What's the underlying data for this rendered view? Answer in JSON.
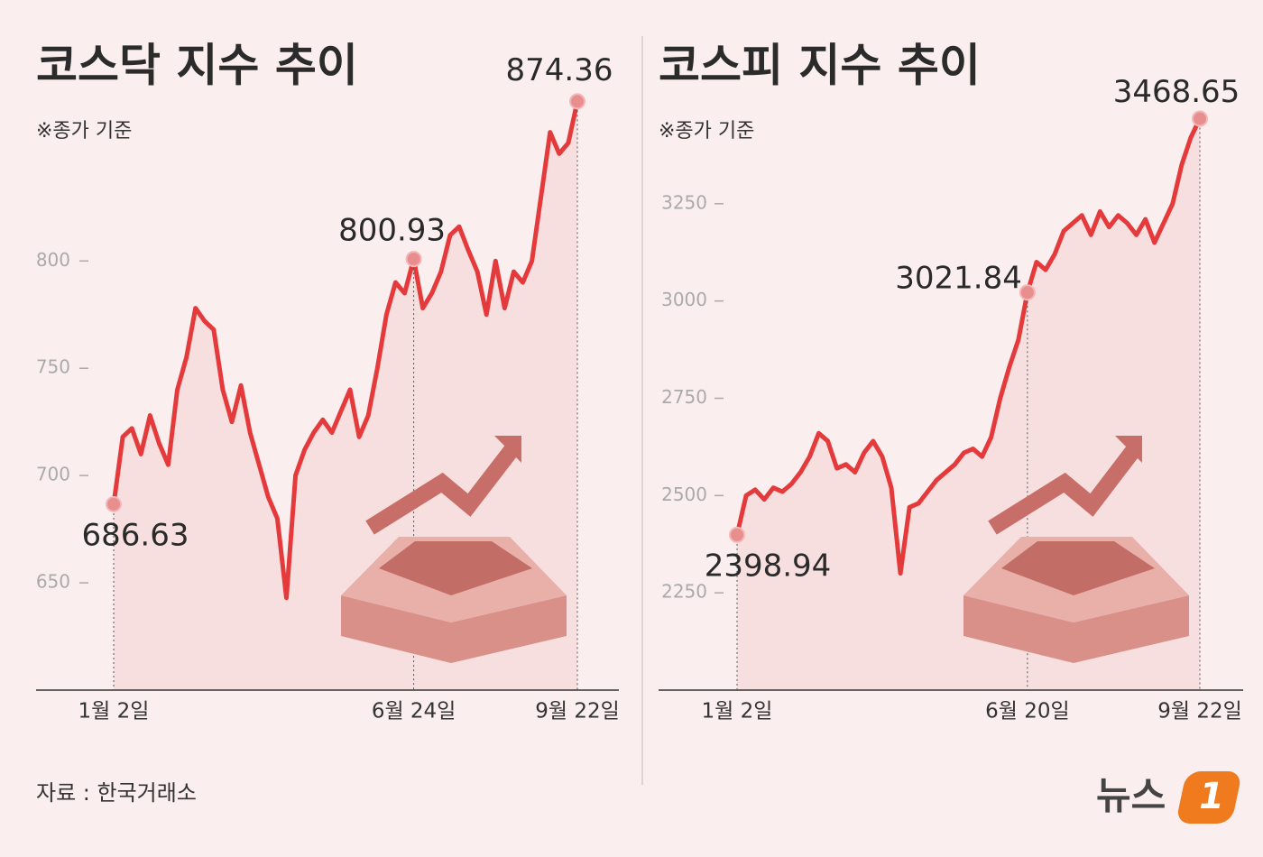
{
  "chart_data": [
    {
      "type": "line",
      "title": "코스닥 지수 추이",
      "subtitle": "※종가 기준",
      "color": "#e53a3c",
      "categories": [
        "1월 2일",
        null,
        null,
        null,
        null,
        null,
        null,
        null,
        null,
        null,
        null,
        null,
        null,
        null,
        null,
        null,
        null,
        null,
        null,
        null,
        null,
        null,
        null,
        null,
        null,
        null,
        null,
        null,
        null,
        null,
        null,
        null,
        null,
        "6월 24일",
        null,
        null,
        null,
        null,
        null,
        null,
        null,
        null,
        null,
        null,
        null,
        null,
        null,
        null,
        null,
        null,
        null,
        "9월 22일"
      ],
      "values": [
        686.63,
        718,
        722,
        710,
        728,
        715,
        705,
        740,
        755,
        778,
        772,
        768,
        740,
        725,
        742,
        720,
        705,
        690,
        680,
        643,
        700,
        712,
        720,
        726,
        720,
        730,
        740,
        718,
        728,
        750,
        775,
        790,
        785,
        800.93,
        778,
        785,
        795,
        812,
        816,
        805,
        795,
        775,
        800,
        778,
        795,
        790,
        800,
        830,
        860,
        850,
        855,
        874.36
      ],
      "ylim": [
        600,
        880
      ],
      "yticks": [
        650,
        700,
        750,
        800
      ]
    },
    {
      "type": "line",
      "title": "코스피 지수 추이",
      "subtitle": "※종가 기준",
      "color": "#e53a3c",
      "categories": [
        "1월 2일",
        null,
        null,
        null,
        null,
        null,
        null,
        null,
        null,
        null,
        null,
        null,
        null,
        null,
        null,
        null,
        null,
        null,
        null,
        null,
        null,
        null,
        null,
        null,
        null,
        null,
        null,
        null,
        null,
        null,
        null,
        null,
        "6월 20일",
        null,
        null,
        null,
        null,
        null,
        null,
        null,
        null,
        null,
        null,
        null,
        null,
        null,
        null,
        null,
        null,
        null,
        null,
        "9월 22일"
      ],
      "values": [
        2398.94,
        2500,
        2515,
        2490,
        2520,
        2510,
        2530,
        2560,
        2600,
        2660,
        2640,
        2570,
        2580,
        2560,
        2610,
        2640,
        2600,
        2520,
        2300,
        2470,
        2480,
        2510,
        2540,
        2560,
        2580,
        2610,
        2620,
        2600,
        2650,
        2750,
        2830,
        2900,
        3021.84,
        3100,
        3080,
        3120,
        3180,
        3200,
        3220,
        3170,
        3230,
        3190,
        3220,
        3200,
        3170,
        3210,
        3150,
        3200,
        3250,
        3350,
        3420,
        3468.65
      ],
      "ylim": [
        2000,
        3500
      ],
      "yticks": [
        2250,
        2500,
        2750,
        3000,
        3250
      ]
    }
  ],
  "source": "자료 : 한국거래소",
  "logo": {
    "text": "뉴스",
    "mark": "1"
  }
}
